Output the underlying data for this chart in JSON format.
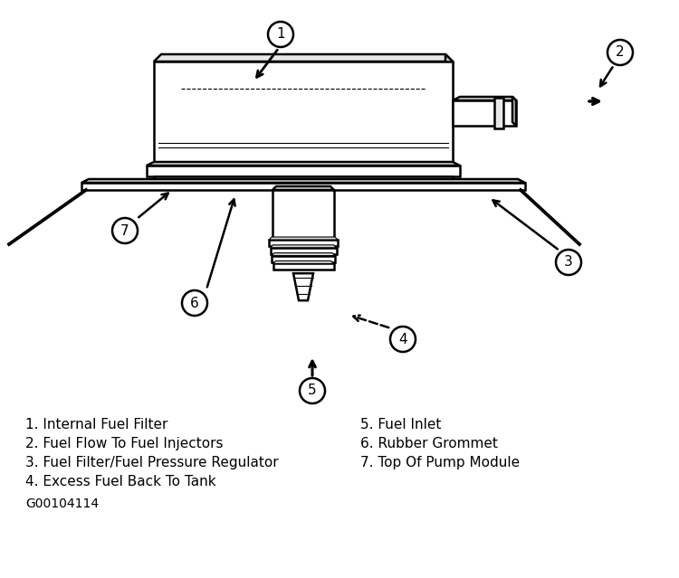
{
  "background_color": "#ffffff",
  "legend_lines": [
    "1. Internal Fuel Filter",
    "2. Fuel Flow To Fuel Injectors",
    "3. Fuel Filter/Fuel Pressure Regulator",
    "4. Excess Fuel Back To Tank"
  ],
  "legend_lines_right": [
    "5. Fuel Inlet",
    "6. Rubber Grommet",
    "7. Top Of Pump Module"
  ],
  "part_number": "G00104114",
  "label_font_size": 11,
  "fig_width": 7.5,
  "fig_height": 6.39
}
